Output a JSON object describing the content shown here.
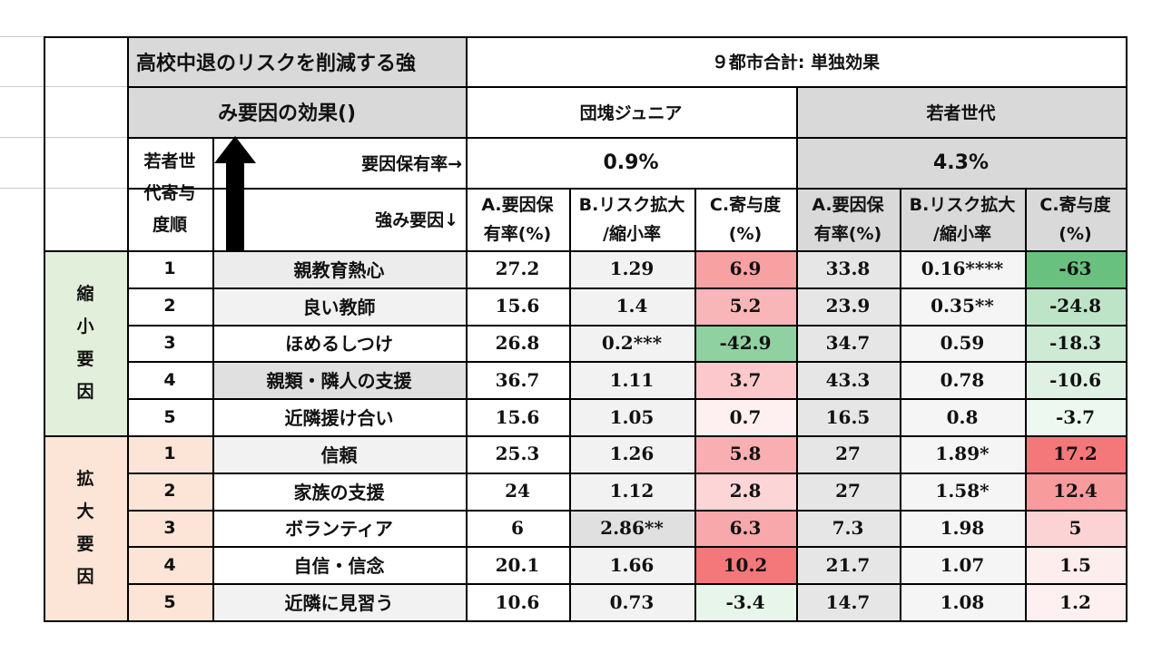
{
  "title_line1": "高校中退のリスクを削減する強",
  "title_line2": "み要因の効果()",
  "city_header": "９都市合計: 単独効果",
  "group_a": "団塊ジュニア",
  "group_b": "若者世代",
  "rank_label": [
    "若者世",
    "代寄与",
    "度順"
  ],
  "rate_label": "要因保有率→",
  "factor_label": "強み要因↓",
  "rate_a": "0.9%",
  "rate_b": "4.3%",
  "col_a": [
    "A.要因保",
    "有率(%)"
  ],
  "col_b": [
    "B.リスク拡大",
    "/縮小率"
  ],
  "col_c": [
    "C.寄与度",
    "(%)"
  ],
  "section_shrink": [
    "縮",
    "小",
    "要",
    "因"
  ],
  "section_expand": [
    "拡",
    "大",
    "要",
    "因"
  ],
  "colors": {
    "header_gray": "#d9d9d9",
    "shrink_section": "#e2efda",
    "expand_section": "#fce4d6",
    "red_strong": "#f4777a",
    "green_strong": "#63be7b"
  },
  "rows": [
    {
      "rank": "1",
      "factor": "親教育熱心",
      "a1": "27.2",
      "b1": "1.29",
      "c1": "6.9",
      "a2": "33.8",
      "b2": "0.16****",
      "c2": "-63"
    },
    {
      "rank": "2",
      "factor": "良い教師",
      "a1": "15.6",
      "b1": "1.4",
      "c1": "5.2",
      "a2": "23.9",
      "b2": "0.35**",
      "c2": "-24.8"
    },
    {
      "rank": "3",
      "factor": "ほめるしつけ",
      "a1": "26.8",
      "b1": "0.2***",
      "c1": "-42.9",
      "a2": "34.7",
      "b2": "0.59",
      "c2": "-18.3"
    },
    {
      "rank": "4",
      "factor": "親類・隣人の支援",
      "a1": "36.7",
      "b1": "1.11",
      "c1": "3.7",
      "a2": "43.3",
      "b2": "0.78",
      "c2": "-10.6"
    },
    {
      "rank": "5",
      "factor": "近隣援け合い",
      "a1": "15.6",
      "b1": "1.05",
      "c1": "0.7",
      "a2": "16.5",
      "b2": "0.8",
      "c2": "-3.7"
    },
    {
      "rank": "1",
      "factor": "信頼",
      "a1": "25.3",
      "b1": "1.26",
      "c1": "5.8",
      "a2": "27",
      "b2": "1.89*",
      "c2": "17.2"
    },
    {
      "rank": "2",
      "factor": "家族の支援",
      "a1": "24",
      "b1": "1.12",
      "c1": "2.8",
      "a2": "27",
      "b2": "1.58*",
      "c2": "12.4"
    },
    {
      "rank": "3",
      "factor": "ボランティア",
      "a1": "6",
      "b1": "2.86**",
      "c1": "6.3",
      "a2": "7.3",
      "b2": "1.98",
      "c2": "5"
    },
    {
      "rank": "4",
      "factor": "自信・信念",
      "a1": "20.1",
      "b1": "1.66",
      "c1": "10.2",
      "a2": "21.7",
      "b2": "1.07",
      "c2": "1.5"
    },
    {
      "rank": "5",
      "factor": "近隣に見習う",
      "a1": "10.6",
      "b1": "0.73",
      "c1": "-3.4",
      "a2": "14.7",
      "b2": "1.08",
      "c2": "1.2"
    }
  ]
}
